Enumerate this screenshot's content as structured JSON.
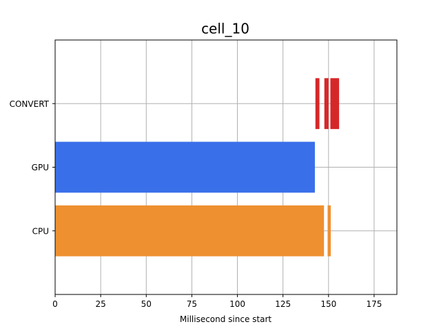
{
  "chart_data": {
    "type": "bar",
    "orientation": "horizontal-timeline",
    "title": "cell_10",
    "xlabel": "Millisecond since start",
    "ylabel": "",
    "xlim": [
      0,
      187.5
    ],
    "xticks": [
      0,
      25,
      50,
      75,
      100,
      125,
      150,
      175
    ],
    "categories": [
      "CPU",
      "GPU",
      "CONVERT"
    ],
    "grid": true,
    "legend": "none",
    "intervals": [
      {
        "category": "CPU",
        "start": 0,
        "end": 147.5,
        "color": "#ee9030"
      },
      {
        "category": "CPU",
        "start": 149.5,
        "end": 151.2,
        "color": "#ee9030"
      },
      {
        "category": "GPU",
        "start": 0,
        "end": 142.5,
        "color": "#3a6fea"
      },
      {
        "category": "CONVERT",
        "start": 142.8,
        "end": 145.0,
        "color": "#d62728"
      },
      {
        "category": "CONVERT",
        "start": 147.7,
        "end": 150.0,
        "color": "#d62728"
      },
      {
        "category": "CONVERT",
        "start": 151.0,
        "end": 155.8,
        "color": "#d62728"
      }
    ]
  }
}
